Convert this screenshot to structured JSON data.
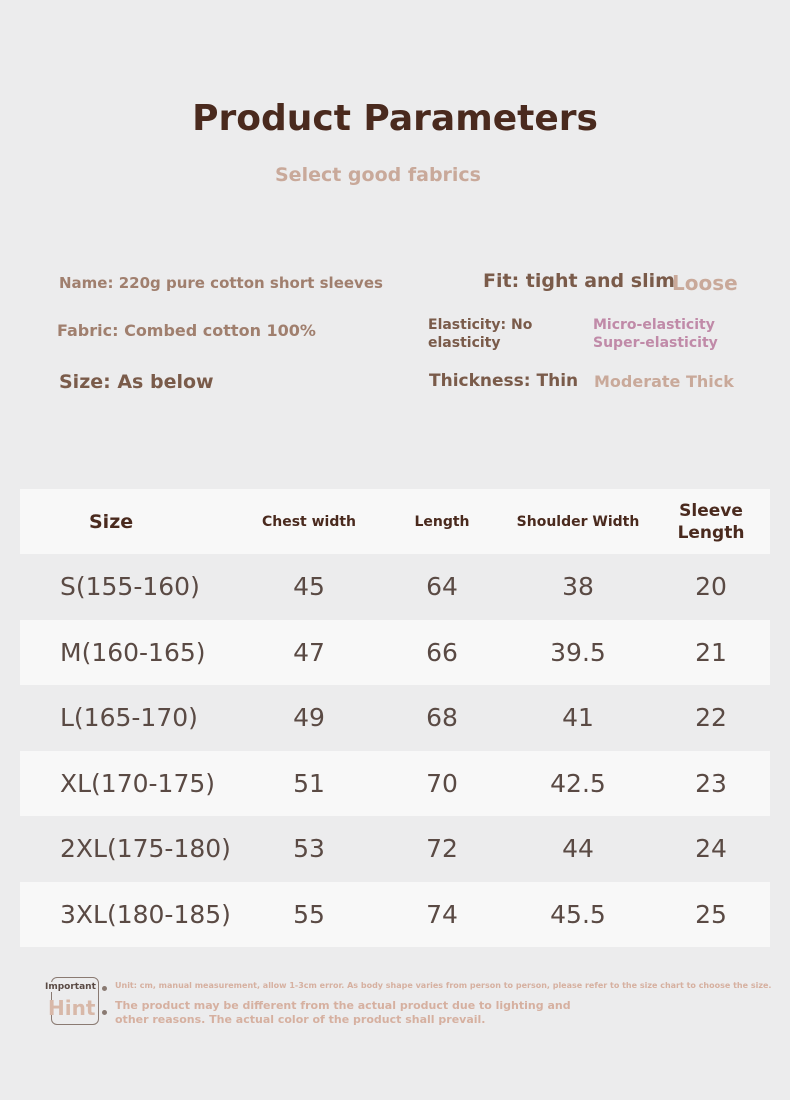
{
  "header": {
    "title": "Product Parameters",
    "subtitle": "Select good fabrics"
  },
  "params": {
    "name": "Name: 220g pure cotton short sleeves",
    "fabric": "Fabric: Combed cotton 100%",
    "size": "Size: As below",
    "fit_label": "Fit: tight and slim",
    "fit_alt": "Loose",
    "elasticity_label": "Elasticity: No elasticity",
    "elasticity_alt1": "Micro-elasticity",
    "elasticity_alt2": "Super-elasticity",
    "thickness_label": "Thickness: Thin",
    "thickness_alt": "Moderate Thick"
  },
  "table": {
    "columns": [
      "Size",
      "Chest width",
      "Length",
      "Shoulder Width",
      "Sleeve Length"
    ],
    "rows": [
      [
        "S(155-160)",
        "45",
        "64",
        "38",
        "20"
      ],
      [
        "M(160-165)",
        "47",
        "66",
        "39.5",
        "21"
      ],
      [
        "L(165-170)",
        "49",
        "68",
        "41",
        "22"
      ],
      [
        "XL(170-175)",
        "51",
        "70",
        "42.5",
        "23"
      ],
      [
        "2XL(175-180)",
        "53",
        "72",
        "44",
        "24"
      ],
      [
        "3XL(180-185)",
        "55",
        "74",
        "45.5",
        "25"
      ]
    ]
  },
  "hint": {
    "important": "Important",
    "word": "Hint",
    "note1": "Unit: cm, manual measurement, allow 1-3cm error. As body shape varies from person to person, please refer to the size chart to choose the size.",
    "note2": "The product may be different from the actual product due to lighting and other reasons. The actual color of the product shall prevail."
  }
}
